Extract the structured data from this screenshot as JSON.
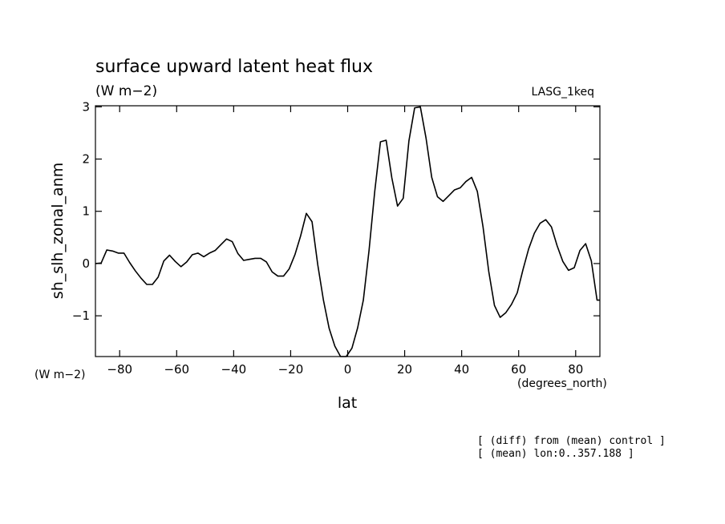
{
  "chart_data": {
    "type": "line",
    "title": "surface upward latent heat flux",
    "subtitle": "(W m−2)",
    "dataset_label": "LASG_1keq",
    "ylabel": "sh_slh_zonal_anm",
    "xlabel": "lat",
    "y_unit_label": "(W m−2)",
    "x_unit_label": "(degrees_north)",
    "xlim": [
      -88.5,
      88.5
    ],
    "ylim": [
      -1.78,
      3.02
    ],
    "x_ticks": [
      -80,
      -60,
      -40,
      -20,
      0,
      20,
      40,
      60,
      80
    ],
    "x_tick_labels": [
      "−80",
      "−60",
      "−40",
      "−20",
      "0",
      "20",
      "40",
      "60",
      "80"
    ],
    "y_ticks": [
      -1,
      0,
      1,
      2,
      3
    ],
    "y_tick_labels": [
      "−1",
      "0",
      "1",
      "2",
      "3"
    ],
    "grid": false,
    "notes": [
      "[ (diff) from (mean) control ]",
      "[ (mean) lon:0..357.188 ]"
    ],
    "series": [
      {
        "color": "#000000",
        "x": [
          -88.5,
          -86.5,
          -84.5,
          -82.5,
          -80.5,
          -78.5,
          -76.5,
          -74.5,
          -72.5,
          -70.5,
          -68.5,
          -66.5,
          -64.5,
          -62.5,
          -60.5,
          -58.5,
          -56.5,
          -54.5,
          -52.5,
          -50.5,
          -48.5,
          -46.5,
          -44.5,
          -42.5,
          -40.5,
          -38.5,
          -36.5,
          -34.5,
          -32.5,
          -30.5,
          -28.5,
          -26.5,
          -24.5,
          -22.5,
          -20.5,
          -18.5,
          -16.5,
          -14.5,
          -12.5,
          -10.5,
          -8.5,
          -6.5,
          -4.5,
          -2.5,
          -0.5,
          1.5,
          3.5,
          5.5,
          7.5,
          9.5,
          11.5,
          13.5,
          15.5,
          17.5,
          19.5,
          21.5,
          23.5,
          25.5,
          27.5,
          29.5,
          31.5,
          33.5,
          35.5,
          37.5,
          39.5,
          41.5,
          43.5,
          45.5,
          47.5,
          49.5,
          51.5,
          53.5,
          55.5,
          57.5,
          59.5,
          61.5,
          63.5,
          65.5,
          67.5,
          69.5,
          71.5,
          73.5,
          75.5,
          77.5,
          79.5,
          81.5,
          83.5,
          85.5,
          87.5,
          88.5
        ],
        "values": [
          0.0,
          0.01,
          0.26,
          0.24,
          0.2,
          0.2,
          0.02,
          -0.14,
          -0.28,
          -0.4,
          -0.4,
          -0.26,
          0.05,
          0.16,
          0.04,
          -0.06,
          0.03,
          0.17,
          0.2,
          0.13,
          0.2,
          0.25,
          0.36,
          0.47,
          0.42,
          0.19,
          0.06,
          0.08,
          0.1,
          0.1,
          0.03,
          -0.16,
          -0.24,
          -0.24,
          -0.1,
          0.17,
          0.53,
          0.96,
          0.8,
          -0.02,
          -0.7,
          -1.24,
          -1.58,
          -1.78,
          -1.8,
          -1.62,
          -1.23,
          -0.7,
          0.25,
          1.38,
          2.33,
          2.36,
          1.64,
          1.1,
          1.25,
          2.35,
          2.98,
          3.0,
          2.4,
          1.65,
          1.28,
          1.19,
          1.3,
          1.41,
          1.45,
          1.57,
          1.65,
          1.38,
          0.7,
          -0.15,
          -0.8,
          -1.03,
          -0.94,
          -0.78,
          -0.56,
          -0.12,
          0.28,
          0.58,
          0.77,
          0.84,
          0.7,
          0.34,
          0.04,
          -0.13,
          -0.08,
          0.25,
          0.38,
          0.05,
          -0.7,
          -0.7
        ]
      }
    ]
  }
}
